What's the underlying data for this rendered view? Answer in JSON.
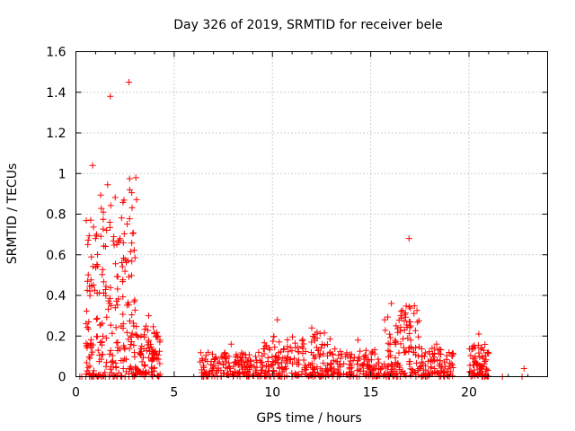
{
  "chart_data": {
    "type": "scatter",
    "title": "Day 326 of 2019, SRMTID for receiver bele",
    "xlabel": "GPS time / hours",
    "ylabel": "SRMTID / TECUs",
    "xlim": [
      0,
      24
    ],
    "ylim": [
      0,
      1.6
    ],
    "xticks": [
      0,
      5,
      10,
      15,
      20
    ],
    "yticks": [
      0,
      0.2,
      0.4,
      0.6,
      0.8,
      1.0,
      1.2,
      1.4,
      1.6
    ],
    "xtick_labels": [
      "0",
      "5",
      "10",
      "15",
      "20"
    ],
    "ytick_labels": [
      "0",
      "0.2",
      "0.4",
      "0.6",
      "0.8",
      "1",
      "1.2",
      "1.4",
      "1.6"
    ],
    "grid": true,
    "marker": "+",
    "color": "#ff0000",
    "series": [
      {
        "name": "SRMTID",
        "clusters": [
          {
            "x0": 0.5,
            "x1": 1.2,
            "n": 70,
            "ymin": 0.0,
            "ymax": 0.78,
            "peak": 1.04
          },
          {
            "x0": 1.2,
            "x1": 2.3,
            "n": 90,
            "ymin": 0.0,
            "ymax": 0.95,
            "peak": 1.38
          },
          {
            "x0": 2.3,
            "x1": 3.1,
            "n": 80,
            "ymin": 0.0,
            "ymax": 1.05,
            "peak": 1.45
          },
          {
            "x0": 3.1,
            "x1": 4.3,
            "n": 90,
            "ymin": 0.0,
            "ymax": 0.25,
            "peak": 0.3
          },
          {
            "x0": 6.3,
            "x1": 9.5,
            "n": 160,
            "ymin": 0.0,
            "ymax": 0.12,
            "peak": 0.16
          },
          {
            "x0": 9.5,
            "x1": 11.0,
            "n": 80,
            "ymin": 0.0,
            "ymax": 0.2,
            "peak": 0.28
          },
          {
            "x0": 11.0,
            "x1": 13.0,
            "n": 110,
            "ymin": 0.0,
            "ymax": 0.22,
            "peak": 0.24
          },
          {
            "x0": 13.0,
            "x1": 15.7,
            "n": 120,
            "ymin": 0.0,
            "ymax": 0.14,
            "peak": 0.18
          },
          {
            "x0": 15.7,
            "x1": 16.4,
            "n": 45,
            "ymin": 0.0,
            "ymax": 0.3,
            "peak": 0.36
          },
          {
            "x0": 16.4,
            "x1": 17.5,
            "n": 70,
            "ymin": 0.0,
            "ymax": 0.35,
            "peak": 0.68
          },
          {
            "x0": 17.5,
            "x1": 19.2,
            "n": 90,
            "ymin": 0.0,
            "ymax": 0.14,
            "peak": 0.16
          },
          {
            "x0": 20.0,
            "x1": 21.0,
            "n": 70,
            "ymin": 0.0,
            "ymax": 0.16,
            "peak": 0.21
          }
        ],
        "zero_points": [
          0.2,
          0.3,
          0.5,
          0.7,
          0.9,
          1.1,
          1.3,
          1.5,
          1.7,
          1.9,
          2.1,
          2.3,
          2.5,
          2.7,
          2.9,
          3.5,
          3.9,
          4.2,
          6.5,
          7.2,
          8.0,
          8.8,
          9.9,
          10.4,
          11.0,
          12.4,
          13.3,
          14.3,
          15.1,
          15.8,
          16.5,
          17.3,
          17.8,
          18.5,
          19.0,
          20.1,
          20.7,
          21.7,
          22.7
        ],
        "outliers": [
          {
            "x": 22.8,
            "y": 0.04
          }
        ]
      }
    ]
  }
}
